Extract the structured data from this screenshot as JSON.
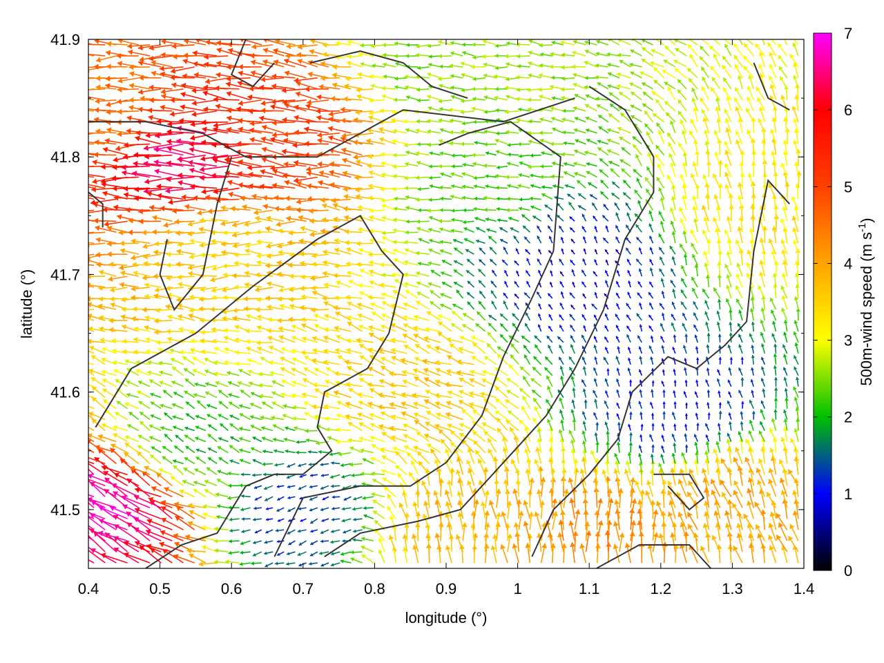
{
  "chart_data": {
    "type": "quiver",
    "title": "",
    "xlabel": "longitude (°)",
    "ylabel": "latitude (°)",
    "xlim": [
      0.4,
      1.4
    ],
    "ylim": [
      41.45,
      41.9
    ],
    "xticks": [
      "0.4",
      "0.5",
      "0.6",
      "0.7",
      "0.8",
      "0.9",
      "1",
      "1.1",
      "1.2",
      "1.3",
      "1.4"
    ],
    "yticks": [
      "41.5",
      "41.6",
      "41.7",
      "41.8",
      "41.9"
    ],
    "grid": false,
    "colorbar": {
      "label_main": "500m-wind speed (m s",
      "label_sup": "-1",
      "label_end": ")",
      "range": [
        0,
        7
      ],
      "ticks": [
        "0",
        "1",
        "2",
        "3",
        "4",
        "5",
        "6",
        "7"
      ],
      "palette": [
        "#000000",
        "#0000ff",
        "#00c000",
        "#ffff00",
        "#ffa500",
        "#ff0000",
        "#ff00ff"
      ]
    },
    "wind_field": {
      "description_of_regions": [
        {
          "center": [
            0.45,
            41.5
          ],
          "speed": 6.8,
          "dir_deg": 150
        },
        {
          "center": [
            0.55,
            41.8
          ],
          "speed": 6.5,
          "dir_deg": 178
        },
        {
          "center": [
            0.68,
            41.82
          ],
          "speed": 5.2,
          "dir_deg": 175
        },
        {
          "center": [
            0.45,
            41.84
          ],
          "speed": 4.5,
          "dir_deg": 180
        },
        {
          "center": [
            0.6,
            41.72
          ],
          "speed": 3.5,
          "dir_deg": 180
        },
        {
          "center": [
            0.85,
            41.6
          ],
          "speed": 3.6,
          "dir_deg": 160
        },
        {
          "center": [
            0.95,
            41.78
          ],
          "speed": 2.3,
          "dir_deg": 175
        },
        {
          "center": [
            1.08,
            41.7
          ],
          "speed": 0.9,
          "dir_deg": 120
        },
        {
          "center": [
            1.22,
            41.58
          ],
          "speed": 1.0,
          "dir_deg": 100
        },
        {
          "center": [
            1.12,
            41.47
          ],
          "speed": 4.3,
          "dir_deg": 90
        },
        {
          "center": [
            1.3,
            41.5
          ],
          "speed": 4.0,
          "dir_deg": 110
        },
        {
          "center": [
            0.7,
            41.5
          ],
          "speed": 1.2,
          "dir_deg": 200
        },
        {
          "center": [
            0.92,
            41.48
          ],
          "speed": 3.8,
          "dir_deg": 95
        },
        {
          "center": [
            1.35,
            41.75
          ],
          "speed": 3.3,
          "dir_deg": 100
        },
        {
          "center": [
            0.9,
            41.88
          ],
          "speed": 2.5,
          "dir_deg": 175
        },
        {
          "center": [
            0.55,
            41.55
          ],
          "speed": 2.0,
          "dir_deg": 150
        }
      ]
    },
    "contours": [
      [
        [
          0.4,
          41.83
        ],
        [
          0.48,
          41.83
        ],
        [
          0.56,
          41.82
        ],
        [
          0.62,
          41.8
        ],
        [
          0.72,
          41.8
        ],
        [
          0.84,
          41.84
        ],
        [
          0.98,
          41.83
        ],
        [
          1.08,
          41.85
        ]
      ],
      [
        [
          0.51,
          41.73
        ],
        [
          0.5,
          41.7
        ],
        [
          0.52,
          41.67
        ],
        [
          0.56,
          41.7
        ],
        [
          0.58,
          41.76
        ],
        [
          0.6,
          41.8
        ]
      ],
      [
        [
          0.41,
          41.57
        ],
        [
          0.46,
          41.62
        ],
        [
          0.55,
          41.65
        ],
        [
          0.63,
          41.69
        ],
        [
          0.72,
          41.73
        ],
        [
          0.78,
          41.75
        ],
        [
          0.81,
          41.72
        ],
        [
          0.84,
          41.7
        ],
        [
          0.82,
          41.65
        ],
        [
          0.79,
          41.62
        ],
        [
          0.73,
          41.6
        ],
        [
          0.72,
          41.57
        ],
        [
          0.74,
          41.55
        ],
        [
          0.7,
          41.53
        ],
        [
          0.66,
          41.53
        ],
        [
          0.62,
          41.52
        ],
        [
          0.58,
          41.48
        ],
        [
          0.53,
          41.47
        ],
        [
          0.48,
          41.45
        ]
      ],
      [
        [
          0.66,
          41.46
        ],
        [
          0.7,
          41.51
        ],
        [
          0.78,
          41.52
        ],
        [
          0.85,
          41.52
        ],
        [
          0.9,
          41.54
        ],
        [
          0.95,
          41.58
        ],
        [
          0.98,
          41.63
        ],
        [
          1.02,
          41.68
        ],
        [
          1.05,
          41.72
        ],
        [
          1.06,
          41.8
        ],
        [
          0.99,
          41.83
        ],
        [
          0.93,
          41.82
        ],
        [
          0.89,
          41.81
        ]
      ],
      [
        [
          0.73,
          41.46
        ],
        [
          0.78,
          41.48
        ],
        [
          0.86,
          41.49
        ],
        [
          0.92,
          41.5
        ],
        [
          0.98,
          41.54
        ],
        [
          1.04,
          41.58
        ],
        [
          1.08,
          41.62
        ],
        [
          1.12,
          41.67
        ],
        [
          1.15,
          41.73
        ],
        [
          1.19,
          41.77
        ],
        [
          1.19,
          41.8
        ],
        [
          1.15,
          41.84
        ],
        [
          1.1,
          41.86
        ]
      ],
      [
        [
          1.02,
          41.46
        ],
        [
          1.05,
          41.5
        ],
        [
          1.1,
          41.53
        ],
        [
          1.14,
          41.56
        ],
        [
          1.16,
          41.6
        ],
        [
          1.21,
          41.63
        ],
        [
          1.25,
          41.62
        ],
        [
          1.29,
          41.64
        ],
        [
          1.32,
          41.66
        ],
        [
          1.33,
          41.72
        ],
        [
          1.35,
          41.78
        ],
        [
          1.38,
          41.76
        ]
      ],
      [
        [
          1.19,
          41.53
        ],
        [
          1.24,
          41.53
        ],
        [
          1.26,
          41.51
        ],
        [
          1.24,
          41.5
        ],
        [
          1.21,
          41.52
        ]
      ],
      [
        [
          1.11,
          41.45
        ],
        [
          1.17,
          41.47
        ],
        [
          1.24,
          41.47
        ],
        [
          1.27,
          41.45
        ]
      ],
      [
        [
          0.71,
          41.88
        ],
        [
          0.78,
          41.89
        ],
        [
          0.84,
          41.88
        ],
        [
          0.88,
          41.86
        ],
        [
          0.93,
          41.85
        ]
      ],
      [
        [
          0.62,
          41.9
        ],
        [
          0.6,
          41.87
        ],
        [
          0.63,
          41.86
        ],
        [
          0.66,
          41.88
        ]
      ],
      [
        [
          1.33,
          41.88
        ],
        [
          1.35,
          41.85
        ],
        [
          1.38,
          41.84
        ]
      ],
      [
        [
          0.4,
          41.77
        ],
        [
          0.42,
          41.76
        ],
        [
          0.42,
          41.74
        ]
      ]
    ]
  }
}
